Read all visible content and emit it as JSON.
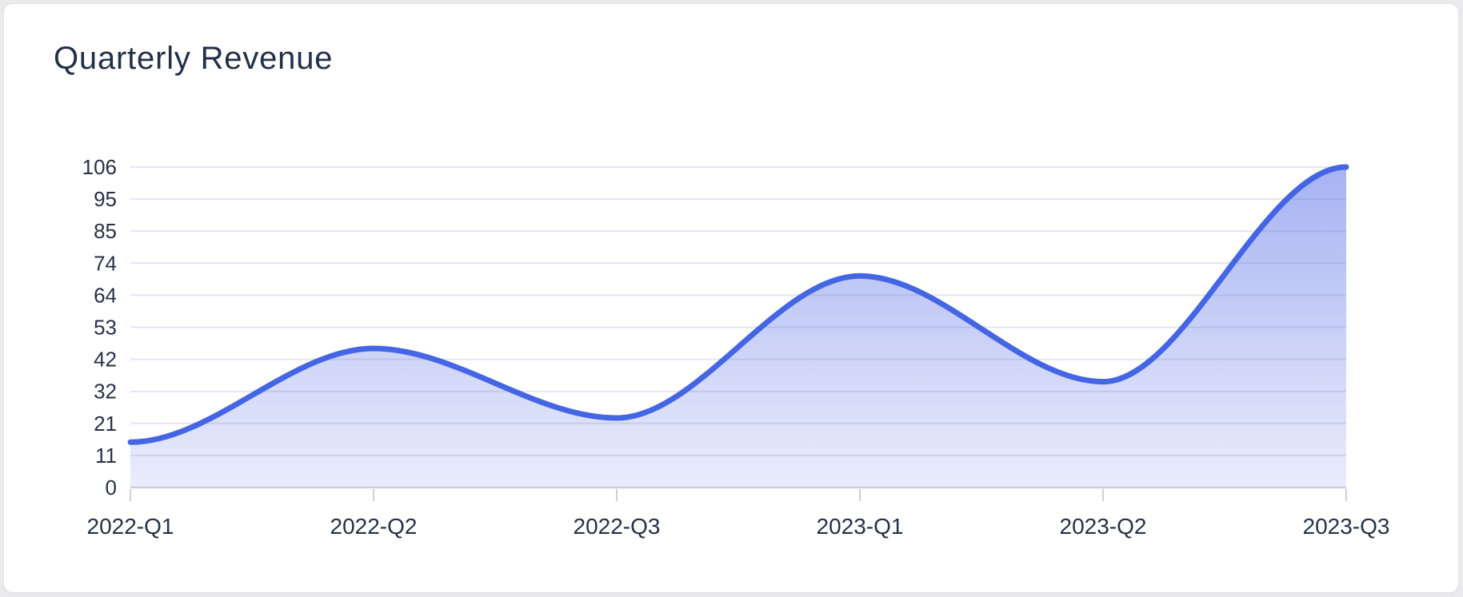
{
  "page": {
    "background": "#ebebee"
  },
  "card": {
    "background": "#ffffff",
    "border_color": "#e4e4e7"
  },
  "chart_data": {
    "type": "area",
    "title": "Quarterly Revenue",
    "categories": [
      "2022-Q1",
      "2022-Q2",
      "2022-Q3",
      "2023-Q1",
      "2023-Q2",
      "2023-Q3"
    ],
    "series": [
      {
        "name": "Quarterly Revenue",
        "values": [
          15,
          46,
          23,
          70,
          35,
          106
        ]
      }
    ],
    "xlabel": "",
    "ylabel": "",
    "ylim": [
      0,
      106
    ],
    "y_tick_labels": [
      "0",
      "11",
      "21",
      "32",
      "42",
      "53",
      "64",
      "74",
      "85",
      "95",
      "106"
    ],
    "grid": true,
    "smooth": true,
    "legend_position": "none",
    "colors": {
      "line": "#4566e4",
      "area_top": "rgba(79,103,228,0.50)",
      "area_bottom": "rgba(79,103,228,0.12)",
      "gridline": "#e3e6ef",
      "axis_line": "#d3d5dc",
      "tick": "#cdd0d6",
      "axis_label": "#263144",
      "title": "#223047"
    }
  }
}
